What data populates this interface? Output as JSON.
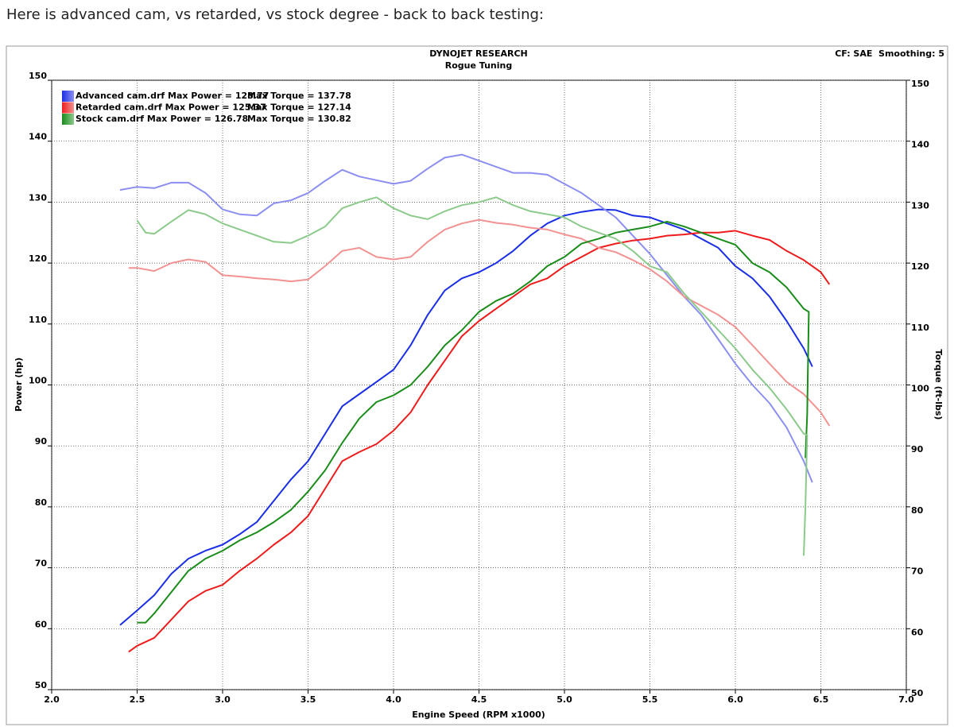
{
  "post_text": "Here is advanced cam, vs retarded, vs stock degree - back to back testing:",
  "chart_data": {
    "type": "line",
    "title": "DYNOJET RESEARCH",
    "subtitle": "Rogue Tuning",
    "annotation": "CF: SAE  Smoothing: 5",
    "xlabel": "Engine Speed (RPM x1000)",
    "ylabel": "Power (hp)",
    "y2label": "Torque (ft-lbs)",
    "xlim": [
      2,
      7
    ],
    "ylim": [
      50,
      150
    ],
    "y2lim": [
      50,
      150
    ],
    "xticks": [
      {
        "value": 2,
        "label": "2.0"
      },
      2.5,
      {
        "value": 3,
        "label": "3.0"
      },
      3.5,
      {
        "value": 4,
        "label": "4.0"
      },
      4.5,
      {
        "value": 5,
        "label": "5.0"
      },
      5.5,
      {
        "value": 6,
        "label": "6.0"
      },
      6.5,
      {
        "value": 7,
        "label": "7.0"
      }
    ],
    "yticks": [
      50,
      60,
      70,
      80,
      90,
      100,
      110,
      120,
      130,
      140,
      150
    ],
    "y2ticks": [
      50,
      60,
      70,
      80,
      90,
      100,
      110,
      120,
      130,
      140,
      150
    ],
    "grid": true,
    "legend": "upper left",
    "series": [
      {
        "name": "Advanced cam.drf Max Power = 128.77",
        "color": "#1a2ee6",
        "x": [
          2.4,
          2.5,
          2.6,
          2.7,
          2.8,
          2.9,
          3.0,
          3.1,
          3.2,
          3.3,
          3.4,
          3.5,
          3.6,
          3.7,
          3.8,
          3.9,
          4.0,
          4.1,
          4.2,
          4.3,
          4.4,
          4.5,
          4.6,
          4.7,
          4.8,
          4.9,
          5.0,
          5.1,
          5.2,
          5.3,
          5.4,
          5.5,
          5.6,
          5.7,
          5.8,
          5.9,
          6.0,
          6.1,
          6.2,
          6.3,
          6.4,
          6.45
        ],
        "values": [
          60.6,
          63,
          65.5,
          69,
          71.5,
          72.8,
          73.8,
          75.5,
          77.5,
          81,
          84.5,
          87.5,
          92,
          96.5,
          98.5,
          100.5,
          102.5,
          106.5,
          111.5,
          115.5,
          117.5,
          118.5,
          120,
          122,
          124.5,
          126.5,
          127.8,
          128.4,
          128.8,
          128.7,
          127.8,
          127.5,
          126.5,
          125.5,
          124,
          122.5,
          119.5,
          117.5,
          114.5,
          110.5,
          106,
          103
        ]
      },
      {
        "name": "Max Torque = 137.78",
        "color": "#8c8ff0",
        "axis": "y2",
        "x": [
          2.4,
          2.5,
          2.6,
          2.7,
          2.8,
          2.9,
          3.0,
          3.1,
          3.2,
          3.3,
          3.4,
          3.5,
          3.6,
          3.7,
          3.8,
          3.9,
          4.0,
          4.1,
          4.2,
          4.3,
          4.4,
          4.5,
          4.6,
          4.7,
          4.8,
          4.9,
          5.0,
          5.1,
          5.2,
          5.3,
          5.4,
          5.5,
          5.6,
          5.7,
          5.8,
          5.9,
          6.0,
          6.1,
          6.2,
          6.3,
          6.4,
          6.45
        ],
        "values": [
          132,
          132.5,
          132.3,
          133.2,
          133.2,
          131.5,
          128.8,
          128,
          127.8,
          129.8,
          130.3,
          131.5,
          133.5,
          135.3,
          134.2,
          133.6,
          133,
          133.5,
          135.5,
          137.3,
          137.8,
          136.8,
          135.8,
          134.8,
          134.8,
          134.5,
          133,
          131.5,
          129.5,
          127.5,
          124.5,
          121.5,
          118,
          114.5,
          111.5,
          107.5,
          103.5,
          100,
          97,
          93,
          87.5,
          84
        ]
      },
      {
        "name": "Retarded cam.drf Max Power = 125.37",
        "color": "#ee1c1c",
        "x": [
          2.45,
          2.5,
          2.6,
          2.7,
          2.8,
          2.9,
          3.0,
          3.1,
          3.2,
          3.3,
          3.4,
          3.5,
          3.6,
          3.7,
          3.8,
          3.9,
          4.0,
          4.1,
          4.2,
          4.3,
          4.4,
          4.5,
          4.6,
          4.7,
          4.8,
          4.9,
          5.0,
          5.1,
          5.2,
          5.3,
          5.4,
          5.5,
          5.6,
          5.7,
          5.8,
          5.9,
          6.0,
          6.1,
          6.2,
          6.3,
          6.4,
          6.5,
          6.55
        ],
        "values": [
          56.2,
          57.2,
          58.5,
          61.5,
          64.5,
          66.2,
          67.2,
          69.5,
          71.5,
          73.8,
          75.8,
          78.5,
          83,
          87.5,
          89,
          90.3,
          92.5,
          95.5,
          100,
          104,
          108,
          110.5,
          112.5,
          114.5,
          116.5,
          117.5,
          119.5,
          121,
          122.5,
          123.2,
          123.7,
          124,
          124.5,
          124.7,
          125,
          125,
          125.3,
          124.5,
          123.8,
          122,
          120.5,
          118.5,
          116.5
        ]
      },
      {
        "name": "Max Torque = 127.14",
        "color": "#f29292",
        "axis": "y2",
        "x": [
          2.45,
          2.5,
          2.6,
          2.7,
          2.8,
          2.9,
          3.0,
          3.1,
          3.2,
          3.3,
          3.4,
          3.5,
          3.6,
          3.7,
          3.8,
          3.9,
          4.0,
          4.1,
          4.2,
          4.3,
          4.4,
          4.5,
          4.6,
          4.7,
          4.8,
          4.9,
          5.0,
          5.1,
          5.2,
          5.3,
          5.4,
          5.5,
          5.6,
          5.7,
          5.8,
          5.9,
          6.0,
          6.1,
          6.2,
          6.3,
          6.4,
          6.5,
          6.55
        ],
        "values": [
          119.2,
          119.2,
          118.7,
          120,
          120.6,
          120.2,
          118,
          117.8,
          117.5,
          117.3,
          117,
          117.3,
          119.5,
          122,
          122.5,
          121,
          120.6,
          121,
          123.5,
          125.5,
          126.5,
          127.1,
          126.6,
          126.3,
          125.8,
          125.5,
          124.7,
          124,
          122.5,
          121.8,
          120.5,
          119,
          117,
          114.5,
          113,
          111.5,
          109.5,
          106.5,
          103.5,
          100.5,
          98.5,
          95.5,
          93.3
        ]
      },
      {
        "name": "Stock cam.drf Max Power = 126.78",
        "color": "#1a8c1a",
        "x": [
          2.5,
          2.55,
          2.6,
          2.7,
          2.8,
          2.9,
          3.0,
          3.1,
          3.2,
          3.3,
          3.4,
          3.5,
          3.6,
          3.7,
          3.8,
          3.9,
          4.0,
          4.1,
          4.2,
          4.3,
          4.4,
          4.5,
          4.6,
          4.7,
          4.8,
          4.9,
          5.0,
          5.1,
          5.2,
          5.3,
          5.4,
          5.5,
          5.6,
          5.7,
          5.8,
          5.9,
          6.0,
          6.1,
          6.2,
          6.3,
          6.4,
          6.43,
          6.42,
          6.41
        ],
        "values": [
          61,
          61,
          62.5,
          66,
          69.5,
          71.5,
          72.8,
          74.5,
          75.8,
          77.5,
          79.5,
          82.5,
          86,
          90.5,
          94.5,
          97.2,
          98.3,
          100,
          103,
          106.5,
          109,
          112,
          113.8,
          115,
          117,
          119.5,
          121,
          123.2,
          124,
          125,
          125.5,
          126,
          126.8,
          126,
          125,
          124,
          123,
          120,
          118.5,
          116,
          112.5,
          112,
          95,
          88
        ]
      },
      {
        "name": "Max Torque = 130.82",
        "color": "#8cca8c",
        "axis": "y2",
        "x": [
          2.5,
          2.55,
          2.6,
          2.7,
          2.8,
          2.9,
          3.0,
          3.1,
          3.2,
          3.3,
          3.4,
          3.5,
          3.6,
          3.7,
          3.8,
          3.9,
          4.0,
          4.1,
          4.2,
          4.3,
          4.4,
          4.5,
          4.6,
          4.7,
          4.8,
          4.9,
          5.0,
          5.1,
          5.2,
          5.3,
          5.4,
          5.5,
          5.6,
          5.7,
          5.8,
          5.9,
          6.0,
          6.1,
          6.2,
          6.3,
          6.35,
          6.4,
          6.42,
          6.41,
          6.4
        ],
        "values": [
          127,
          125,
          124.8,
          126.8,
          128.7,
          128,
          126.5,
          125.5,
          124.5,
          123.5,
          123.3,
          124.5,
          126,
          129,
          130,
          130.8,
          129,
          127.8,
          127.2,
          128.5,
          129.5,
          130,
          130.8,
          129.5,
          128.5,
          128,
          127.5,
          126,
          125,
          124,
          122,
          119.5,
          118.5,
          115,
          112,
          109,
          106,
          102.5,
          99.5,
          96,
          94,
          92,
          91.8,
          80,
          72
        ]
      }
    ]
  }
}
